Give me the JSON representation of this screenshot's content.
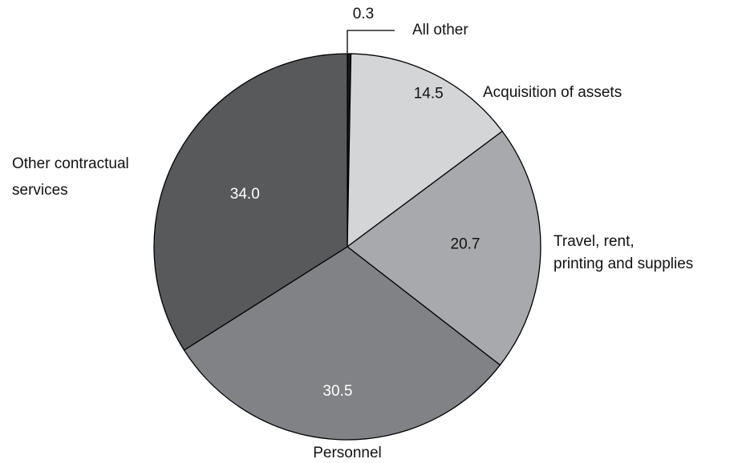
{
  "chart_data": {
    "type": "pie",
    "slices": [
      {
        "name": "All other",
        "value": 0.3,
        "label": "0.3",
        "color": "#1a1a1a",
        "label_color": "#111111"
      },
      {
        "name": "Acquisition of assets",
        "value": 14.5,
        "label": "14.5",
        "color": "#d4d5d7",
        "label_color": "#111111"
      },
      {
        "name": "Travel, rent, printing and supplies",
        "value": 20.7,
        "label": "20.7",
        "color": "#a7a9ac",
        "label_color": "#111111"
      },
      {
        "name": "Personnel",
        "value": 30.5,
        "label": "30.5",
        "color": "#808285",
        "label_color": "#ffffff"
      },
      {
        "name": "Other contractual services",
        "value": 34.0,
        "label": "34.0",
        "color": "#58595b",
        "label_color": "#ffffff"
      }
    ],
    "category_labels": {
      "all_other": "All other",
      "acquisition": "Acquisition of assets",
      "travel_line1": "Travel, rent,",
      "travel_line2": "printing and supplies",
      "personnel": "Personnel",
      "other_line1": "Other contractual",
      "other_line2": "services"
    },
    "start": "12 o'clock",
    "direction": "clockwise"
  }
}
